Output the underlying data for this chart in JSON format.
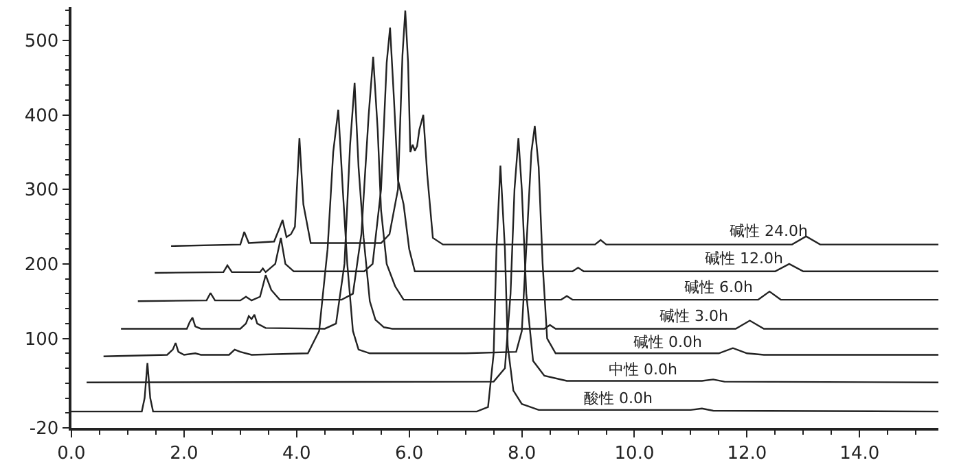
{
  "chart_data": {
    "type": "line",
    "xlim": [
      0,
      15.4
    ],
    "ylim": [
      -20,
      545
    ],
    "xticks": [
      {
        "value": 0,
        "label": "0.0"
      },
      {
        "value": 2,
        "label": "2.0"
      },
      {
        "value": 4,
        "label": "4.0"
      },
      {
        "value": 6,
        "label": "6.0"
      },
      {
        "value": 8,
        "label": "8.0"
      },
      {
        "value": 10,
        "label": "10.0"
      },
      {
        "value": 12,
        "label": "12.0"
      },
      {
        "value": 14,
        "label": "14.0"
      }
    ],
    "yticks": [
      -20,
      100,
      200,
      300,
      400,
      500
    ],
    "legend": false,
    "marker": "none",
    "line_style": "solid",
    "series": [
      {
        "name": "酸性 0.0h",
        "color": "#222222",
        "x": [
          0,
          1.25,
          1.3,
          1.35,
          1.4,
          1.45,
          7.2,
          7.4,
          7.5,
          7.55,
          7.62,
          7.7,
          7.75,
          7.85,
          8.0,
          8.3,
          11.0,
          11.2,
          11.4,
          15.4
        ],
        "values": [
          2,
          2,
          20,
          67,
          20,
          2,
          2,
          8,
          80,
          220,
          332,
          220,
          90,
          30,
          12,
          4,
          4,
          6,
          3,
          2
        ]
      },
      {
        "name": "中性 0.0h",
        "color": "#222222",
        "x": [
          0.27,
          7.5,
          7.7,
          7.8,
          7.87,
          7.94,
          8.0,
          8.08,
          8.2,
          8.4,
          8.8,
          11.2,
          11.4,
          11.6,
          15.4
        ],
        "values": [
          41,
          42,
          60,
          160,
          300,
          369,
          300,
          160,
          70,
          50,
          43,
          43,
          45,
          42,
          41
        ]
      },
      {
        "name": "碱性 0.0h",
        "color": "#222222",
        "x": [
          0.57,
          1.7,
          1.8,
          1.85,
          1.9,
          2.0,
          2.2,
          2.3,
          2.8,
          2.9,
          3.0,
          3.2,
          4.2,
          4.4,
          4.55,
          4.65,
          4.74,
          4.82,
          4.9,
          5.0,
          5.1,
          5.3,
          7.0,
          7.9,
          8.0,
          8.1,
          8.17,
          8.23,
          8.3,
          8.37,
          8.45,
          8.6,
          11.5,
          11.75,
          12.0,
          12.3,
          15.4
        ],
        "values": [
          76,
          78,
          85,
          94,
          82,
          78,
          80,
          78,
          78,
          85,
          82,
          78,
          80,
          110,
          220,
          350,
          407,
          300,
          200,
          110,
          85,
          80,
          80,
          82,
          110,
          250,
          350,
          385,
          330,
          200,
          100,
          80,
          80,
          87,
          80,
          78,
          78
        ]
      },
      {
        "name": "碱性 3.0h",
        "color": "#222222",
        "x": [
          0.88,
          2.05,
          2.1,
          2.15,
          2.2,
          2.3,
          3.0,
          3.1,
          3.15,
          3.2,
          3.25,
          3.3,
          3.45,
          4.5,
          4.7,
          4.85,
          4.95,
          5.03,
          5.1,
          5.19,
          5.3,
          5.4,
          5.55,
          5.7,
          8.4,
          8.5,
          8.6,
          11.8,
          12.05,
          12.3,
          15.4
        ],
        "values": [
          113,
          113,
          122,
          128,
          116,
          113,
          113,
          120,
          130,
          126,
          132,
          120,
          114,
          113,
          120,
          200,
          360,
          443,
          330,
          235,
          150,
          125,
          115,
          113,
          113,
          118,
          113,
          113,
          124,
          113,
          113
        ]
      },
      {
        "name": "碱性 6.0h",
        "color": "#222222",
        "x": [
          1.18,
          2.4,
          2.47,
          2.55,
          3.0,
          3.1,
          3.2,
          3.35,
          3.45,
          3.55,
          3.7,
          4.8,
          5.0,
          5.15,
          5.28,
          5.36,
          5.44,
          5.5,
          5.6,
          5.75,
          5.9,
          8.7,
          8.8,
          8.9,
          12.2,
          12.4,
          12.6,
          15.4
        ],
        "values": [
          150,
          151,
          161,
          151,
          151,
          156,
          151,
          156,
          185,
          165,
          152,
          152,
          160,
          240,
          400,
          478,
          380,
          272,
          200,
          170,
          152,
          152,
          157,
          152,
          152,
          163,
          152,
          152
        ]
      },
      {
        "name": "碱性 12.0h",
        "color": "#222222",
        "x": [
          1.48,
          2.7,
          2.77,
          2.85,
          3.35,
          3.4,
          3.45,
          3.62,
          3.72,
          3.8,
          3.95,
          5.2,
          5.35,
          5.5,
          5.6,
          5.66,
          5.73,
          5.8,
          5.9,
          6.0,
          6.1,
          8.9,
          9.0,
          9.1,
          12.5,
          12.75,
          13.0,
          15.4
        ],
        "values": [
          188,
          189,
          198,
          189,
          189,
          194,
          189,
          200,
          235,
          200,
          190,
          190,
          200,
          300,
          470,
          517,
          420,
          313,
          280,
          220,
          190,
          190,
          195,
          190,
          190,
          200,
          190,
          190
        ]
      },
      {
        "name": "碱性 24.0h",
        "color": "#222222",
        "x": [
          1.77,
          3.0,
          3.07,
          3.15,
          3.6,
          3.68,
          3.75,
          3.82,
          3.9,
          3.97,
          4.05,
          4.12,
          4.25,
          5.5,
          5.65,
          5.8,
          5.88,
          5.93,
          5.98,
          6.02,
          6.06,
          6.1,
          6.14,
          6.18,
          6.25,
          6.32,
          6.42,
          6.6,
          9.3,
          9.4,
          9.5,
          12.8,
          13.05,
          13.3,
          15.4
        ],
        "values": [
          224,
          226,
          243,
          228,
          230,
          245,
          259,
          236,
          240,
          250,
          369,
          280,
          228,
          228,
          240,
          300,
          480,
          540,
          470,
          350,
          360,
          352,
          358,
          380,
          400,
          320,
          235,
          226,
          226,
          232,
          226,
          226,
          237,
          226,
          226
        ]
      }
    ]
  }
}
